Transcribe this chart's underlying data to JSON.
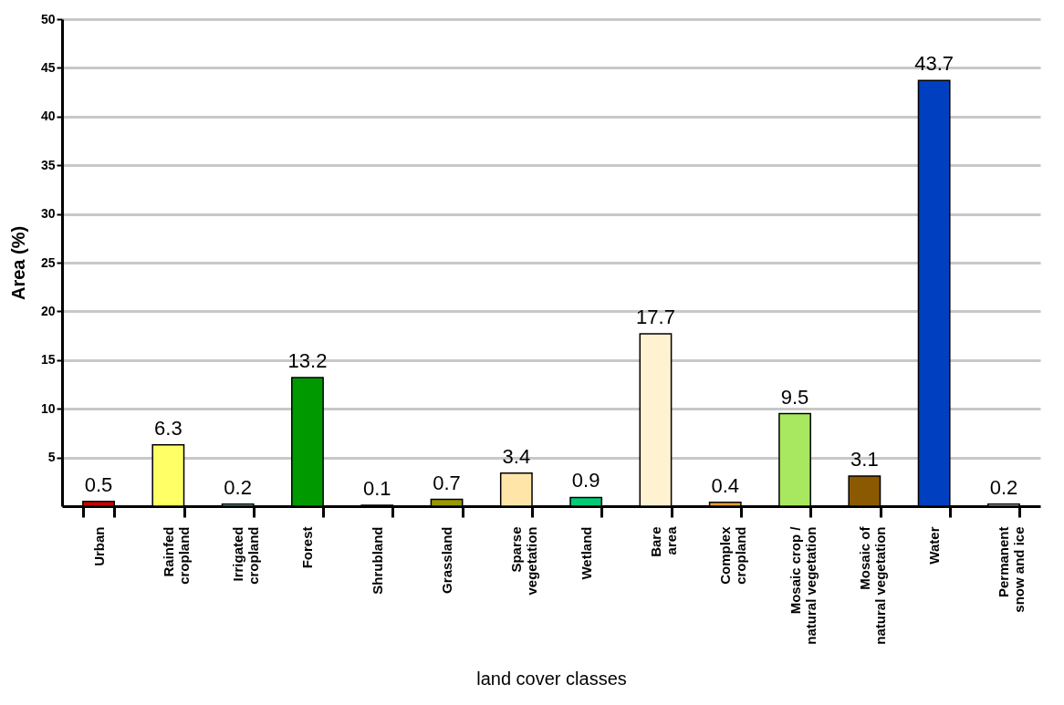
{
  "chart_data": {
    "type": "bar",
    "xlabel": "land cover classes",
    "ylabel": "Area (%)",
    "categories": [
      "Urban",
      "Rainfed cropland",
      "Irrigated cropland",
      "Forest",
      "Shrubland",
      "Grassland",
      "Sparse vegetation",
      "Wetland",
      "Bare area",
      "Complex cropland",
      "Mosaic crop / natural vegetation",
      "Mosaic of natural vegetation",
      "Water",
      "Permanent snow and ice"
    ],
    "values": [
      0.5,
      6.3,
      0.2,
      13.2,
      0.1,
      0.7,
      3.4,
      0.9,
      17.7,
      0.4,
      9.5,
      3.1,
      43.7,
      0.2
    ],
    "colors": [
      "#cc0000",
      "#ffff66",
      "#99dddd",
      "#009900",
      "#660000",
      "#999900",
      "#ffe6a8",
      "#00cc77",
      "#fff2d0",
      "#e8a030",
      "#a8e860",
      "#8b5a00",
      "#0040c0",
      "#ffffff"
    ],
    "ylim": [
      0,
      50
    ],
    "yticks": [
      5,
      10,
      15,
      20,
      25,
      30,
      35,
      40,
      45,
      50
    ],
    "grid": "y",
    "data_labels": true
  }
}
